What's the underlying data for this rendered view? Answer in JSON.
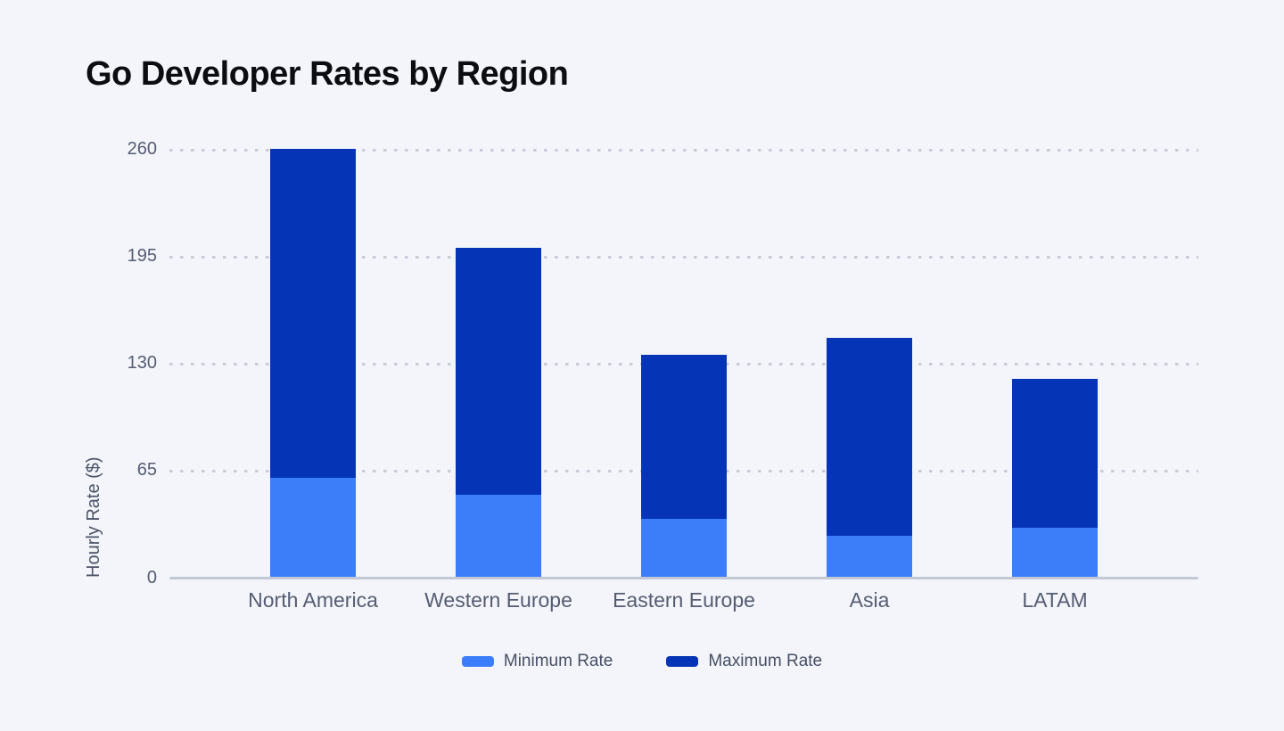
{
  "title": "Go Developer Rates by Region",
  "chart_data": {
    "type": "bar",
    "variant": "stacked-range",
    "title": "Go Developer Rates by Region",
    "xlabel": "",
    "ylabel": "Hourly Rate ($)",
    "categories": [
      "North America",
      "Western Europe",
      "Eastern Europe",
      "Asia",
      "LATAM"
    ],
    "series": [
      {
        "name": "Minimum Rate",
        "color": "#3c7dfa",
        "values": [
          60,
          50,
          35,
          25,
          30
        ]
      },
      {
        "name": "Maximum Rate",
        "color": "#0534b7",
        "values": [
          260,
          200,
          135,
          145,
          120
        ]
      }
    ],
    "ylim": [
      0,
      260
    ],
    "yticks": [
      0,
      65,
      130,
      195,
      260
    ],
    "grid": "horizontal-dashed",
    "legend_position": "bottom",
    "note": "Each bar spans 0 to Maximum Rate; light segment shows 0 to Minimum Rate, dark segment shows Minimum to Maximum Rate."
  },
  "colors": {
    "background": "#f3f5fa",
    "min_rate": "#3c7dfa",
    "max_rate": "#0534b7",
    "gridline": "#c7ccd9",
    "axis_line": "#c3c8d4",
    "tick_text": "#565c72",
    "legend_text": "#474e63",
    "title_text": "#0c0d10"
  }
}
